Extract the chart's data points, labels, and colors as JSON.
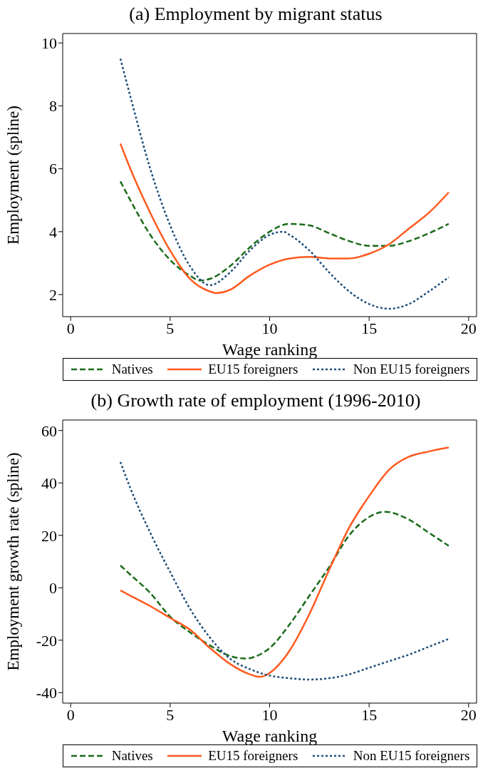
{
  "chart_data": [
    {
      "type": "line",
      "title": "(a) Employment by migrant status",
      "xlabel": "Wage ranking",
      "ylabel": "Employment (spline)",
      "xlim": [
        -0.4,
        20.4
      ],
      "xticks": [
        0,
        5,
        10,
        15,
        20
      ],
      "ylim": [
        1.3,
        10.3
      ],
      "yticks": [
        2,
        4,
        6,
        8,
        10
      ],
      "legend": "bottom",
      "series": [
        {
          "name": "Natives",
          "color": "#1a6b1a",
          "line_style": "dashed",
          "x": [
            2.5,
            3,
            4,
            5,
            6,
            6.5,
            7,
            8,
            9,
            10,
            11,
            12,
            13,
            14,
            15,
            16,
            17,
            18,
            19
          ],
          "values": [
            5.6,
            5.0,
            3.9,
            3.1,
            2.6,
            2.45,
            2.5,
            2.9,
            3.5,
            4.0,
            4.25,
            4.2,
            3.95,
            3.7,
            3.55,
            3.55,
            3.7,
            3.95,
            4.25
          ]
        },
        {
          "name": "EU15 foreigners",
          "color": "#ff5a1f",
          "line_style": "solid",
          "x": [
            2.5,
            3,
            4,
            5,
            6,
            7,
            7.3,
            8,
            9,
            10,
            11,
            12,
            13,
            14,
            15,
            16,
            17,
            18,
            19
          ],
          "values": [
            6.8,
            6.0,
            4.6,
            3.4,
            2.5,
            2.1,
            2.05,
            2.15,
            2.6,
            2.95,
            3.15,
            3.2,
            3.15,
            3.15,
            3.3,
            3.6,
            4.1,
            4.6,
            5.25
          ]
        },
        {
          "name": "Non EU15 foreigners",
          "color": "#1f4e79",
          "line_style": "dotted",
          "x": [
            2.5,
            3,
            4,
            5,
            6,
            7,
            8,
            9,
            10,
            10.7,
            11,
            12,
            13,
            14,
            15,
            16,
            17,
            18,
            19
          ],
          "values": [
            9.5,
            8.3,
            6.0,
            4.2,
            2.9,
            2.3,
            2.7,
            3.4,
            3.9,
            4.0,
            3.9,
            3.4,
            2.7,
            2.1,
            1.7,
            1.55,
            1.7,
            2.1,
            2.55
          ]
        }
      ]
    },
    {
      "type": "line",
      "title": "(b) Growth rate of employment (1996-2010)",
      "xlabel": "Wage ranking",
      "ylabel": "Employment growth rate (spline)",
      "xlim": [
        -0.4,
        20.4
      ],
      "xticks": [
        0,
        5,
        10,
        15,
        20
      ],
      "ylim": [
        -44,
        64
      ],
      "yticks": [
        -40,
        -20,
        0,
        20,
        40,
        60
      ],
      "legend": "bottom",
      "series": [
        {
          "name": "Natives",
          "color": "#1a6b1a",
          "line_style": "dashed",
          "x": [
            2.5,
            3,
            4,
            5,
            6,
            7,
            8,
            8.8,
            9.5,
            10,
            11,
            12,
            13,
            14,
            15,
            15.8,
            17,
            18,
            19
          ],
          "values": [
            8.5,
            5,
            -2,
            -11,
            -17,
            -22,
            -26,
            -27,
            -25.5,
            -23,
            -14,
            -3,
            8,
            20,
            27,
            29,
            26,
            21,
            16
          ]
        },
        {
          "name": "EU15 foreigners",
          "color": "#ff5a1f",
          "line_style": "solid",
          "x": [
            2.5,
            3,
            4,
            5,
            6,
            7,
            8,
            9,
            9.5,
            10,
            10.5,
            11,
            12,
            13,
            14,
            15,
            16,
            17,
            18,
            19
          ],
          "values": [
            -1,
            -3,
            -7,
            -11.5,
            -16,
            -23,
            -29,
            -33,
            -34,
            -32.5,
            -29,
            -24,
            -10,
            7,
            23,
            35,
            45,
            50,
            52,
            53.5
          ]
        },
        {
          "name": "Non EU15 foreigners",
          "color": "#1f4e79",
          "line_style": "dotted",
          "x": [
            2.5,
            3,
            4,
            5,
            6,
            7,
            8,
            9,
            10,
            11,
            12,
            13,
            14,
            15,
            16,
            17,
            18,
            19
          ],
          "values": [
            48,
            38,
            21,
            6,
            -8,
            -19,
            -27,
            -31,
            -33.5,
            -34.5,
            -35,
            -34.5,
            -33,
            -30.5,
            -28,
            -25.5,
            -22.5,
            -19.5
          ]
        }
      ]
    }
  ]
}
